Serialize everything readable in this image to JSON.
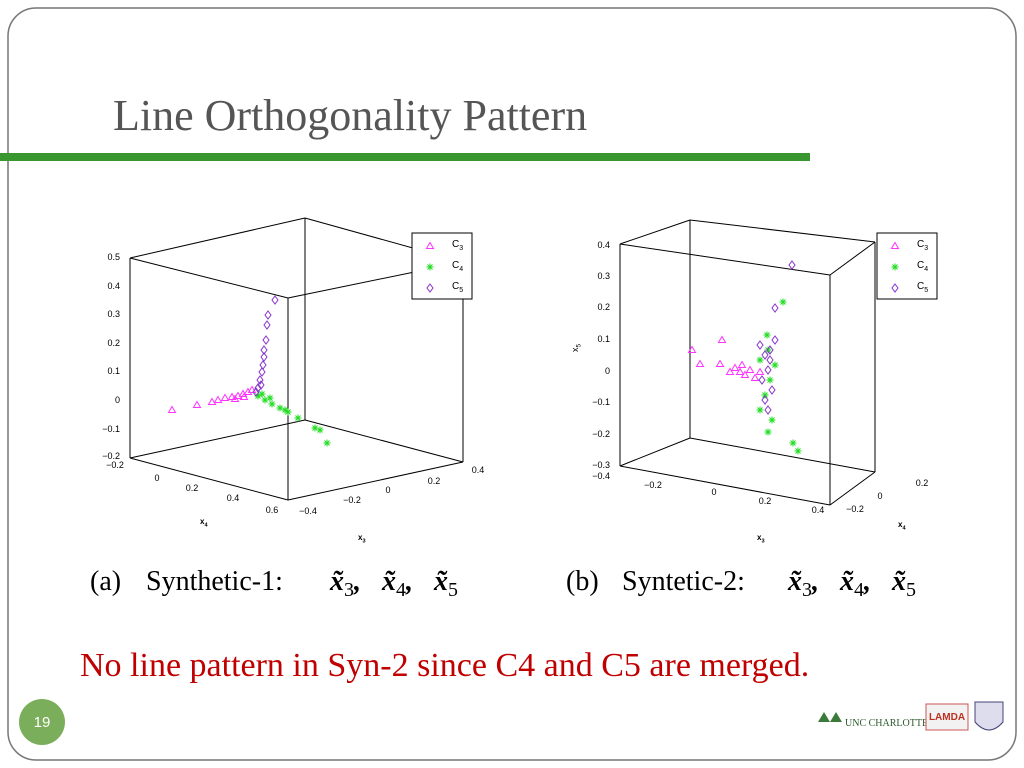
{
  "title": "Line Orthogonality Pattern",
  "figures": [
    {
      "caption_label": "(a)",
      "caption": "Synthetic-1:",
      "math": [
        {
          "symbol": "x̃",
          "sub": "3"
        },
        {
          "symbol": "x̃",
          "sub": "4"
        },
        {
          "symbol": "x̃",
          "sub": "5"
        }
      ],
      "vertical_ticks": [
        "0.5",
        "0.4",
        "0.3",
        "0.2",
        "0.1",
        "0",
        "−0.1",
        "−0.2"
      ],
      "x4_ticks": [
        "−0.2",
        "0",
        "0.2",
        "0.4",
        "0.6"
      ],
      "x4_label": {
        "symbol": "x",
        "sub": "4"
      },
      "x3_ticks": [
        "−0.4",
        "−0.2",
        "0",
        "0.2",
        "0.4"
      ],
      "x3_label": {
        "symbol": "x",
        "sub": "3"
      },
      "legend": [
        {
          "symbol": "C",
          "sub": "3"
        },
        {
          "symbol": "C",
          "sub": "4"
        },
        {
          "symbol": "C",
          "sub": "5"
        }
      ]
    },
    {
      "caption_label": "(b)",
      "caption": "Syntetic-2:",
      "math": [
        {
          "symbol": "x̃",
          "sub": "3"
        },
        {
          "symbol": "x̃",
          "sub": "4"
        },
        {
          "symbol": "x̃",
          "sub": "5"
        }
      ],
      "vertical_ticks": [
        "0.4",
        "0.3",
        "0.2",
        "0.1",
        "0",
        "−0.1",
        "−0.2",
        "−0.3",
        "−0.4"
      ],
      "vertical_label": {
        "symbol": "x",
        "sub": "5"
      },
      "x3_ticks": [
        "−0.2",
        "0",
        "0.2",
        "0.4"
      ],
      "x3_label": {
        "symbol": "x",
        "sub": "3"
      },
      "x4_ticks": [
        "−0.2",
        "0",
        "0.2"
      ],
      "x4_label": {
        "symbol": "x",
        "sub": "4"
      },
      "legend": [
        {
          "symbol": "C",
          "sub": "3"
        },
        {
          "symbol": "C",
          "sub": "4"
        },
        {
          "symbol": "C",
          "sub": "5"
        }
      ]
    }
  ],
  "note": "No line pattern in Syn-2 since C4 and C5 are merged.",
  "page_number": "19",
  "logos": [
    "UNC CHARLOTTE",
    "LAMDA"
  ]
}
